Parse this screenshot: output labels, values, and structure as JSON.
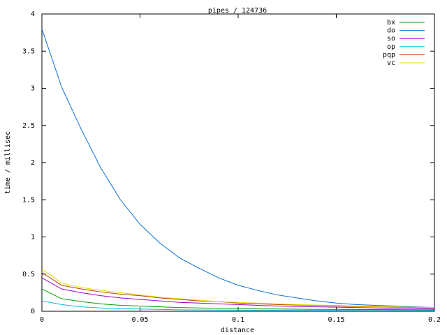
{
  "chart_data": {
    "type": "line",
    "title": "pipes / 124736",
    "x_label": "distance",
    "y_label": "time / millisec",
    "x": [
      0,
      0.01,
      0.02,
      0.03,
      0.04,
      0.05,
      0.06,
      0.07,
      0.08,
      0.09,
      0.1,
      0.11,
      0.12,
      0.13,
      0.14,
      0.15,
      0.16,
      0.17,
      0.18,
      0.19,
      0.2
    ],
    "series": [
      {
        "name": "bx",
        "color": "#00a000",
        "values": [
          0.3,
          0.17,
          0.13,
          0.1,
          0.08,
          0.07,
          0.06,
          0.05,
          0.045,
          0.04,
          0.035,
          0.032,
          0.03,
          0.028,
          0.026,
          0.025,
          0.024,
          0.023,
          0.022,
          0.021,
          0.02
        ]
      },
      {
        "name": "do",
        "color": "#0a6ed8",
        "values": [
          3.8,
          3.02,
          2.45,
          1.93,
          1.5,
          1.17,
          0.92,
          0.72,
          0.58,
          0.45,
          0.35,
          0.28,
          0.22,
          0.18,
          0.14,
          0.11,
          0.09,
          0.08,
          0.07,
          0.06,
          0.05
        ]
      },
      {
        "name": "so",
        "color": "#a000d0",
        "values": [
          0.45,
          0.3,
          0.25,
          0.21,
          0.18,
          0.16,
          0.14,
          0.12,
          0.11,
          0.1,
          0.09,
          0.08,
          0.07,
          0.065,
          0.06,
          0.055,
          0.05,
          0.045,
          0.04,
          0.035,
          0.03
        ]
      },
      {
        "name": "op",
        "color": "#00c0e0",
        "values": [
          0.14,
          0.09,
          0.06,
          0.045,
          0.035,
          0.03,
          0.025,
          0.02,
          0.018,
          0.016,
          0.015,
          0.014,
          0.013,
          0.012,
          0.012,
          0.011,
          0.011,
          0.01,
          0.01,
          0.01,
          0.01
        ]
      },
      {
        "name": "pqp",
        "color": "#c04000",
        "values": [
          0.52,
          0.35,
          0.3,
          0.26,
          0.23,
          0.21,
          0.18,
          0.16,
          0.14,
          0.13,
          0.11,
          0.1,
          0.09,
          0.085,
          0.08,
          0.07,
          0.065,
          0.06,
          0.055,
          0.05,
          0.045
        ]
      },
      {
        "name": "vc",
        "color": "#e0e000",
        "values": [
          0.57,
          0.38,
          0.32,
          0.28,
          0.25,
          0.22,
          0.19,
          0.17,
          0.15,
          0.13,
          0.12,
          0.11,
          0.1,
          0.09,
          0.085,
          0.08,
          0.07,
          0.065,
          0.06,
          0.055,
          0.05
        ]
      }
    ],
    "xlim": [
      0,
      0.2
    ],
    "xticks": [
      0,
      0.05,
      0.1,
      0.15,
      0.2
    ],
    "ylim": [
      0,
      4
    ],
    "yticks": [
      0,
      0.5,
      1,
      1.5,
      2,
      2.5,
      3,
      3.5,
      4
    ],
    "legend": "top-right"
  }
}
